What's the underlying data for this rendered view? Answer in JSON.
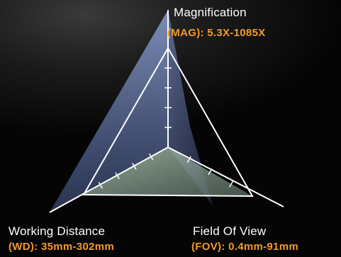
{
  "header_partial": "...",
  "axes": [
    {
      "key": "mag",
      "name": "Magnification",
      "value": "(MAG): 5.3X-1085X"
    },
    {
      "key": "wd",
      "name": "Working Distance",
      "value": "(WD): 35mm-302mm"
    },
    {
      "key": "fov",
      "name": "Field Of View",
      "value": "(FOV): 0.4mm-91mm"
    }
  ],
  "colors": {
    "accent": "#f39a2b",
    "axis_line": "#ffffff",
    "face_left": "#6a7dae",
    "face_right": "#4c5a8a",
    "face_bottom": "#8fa79a"
  },
  "tick_marks": {
    "mag": 4,
    "wd": 4,
    "fov": 3
  }
}
